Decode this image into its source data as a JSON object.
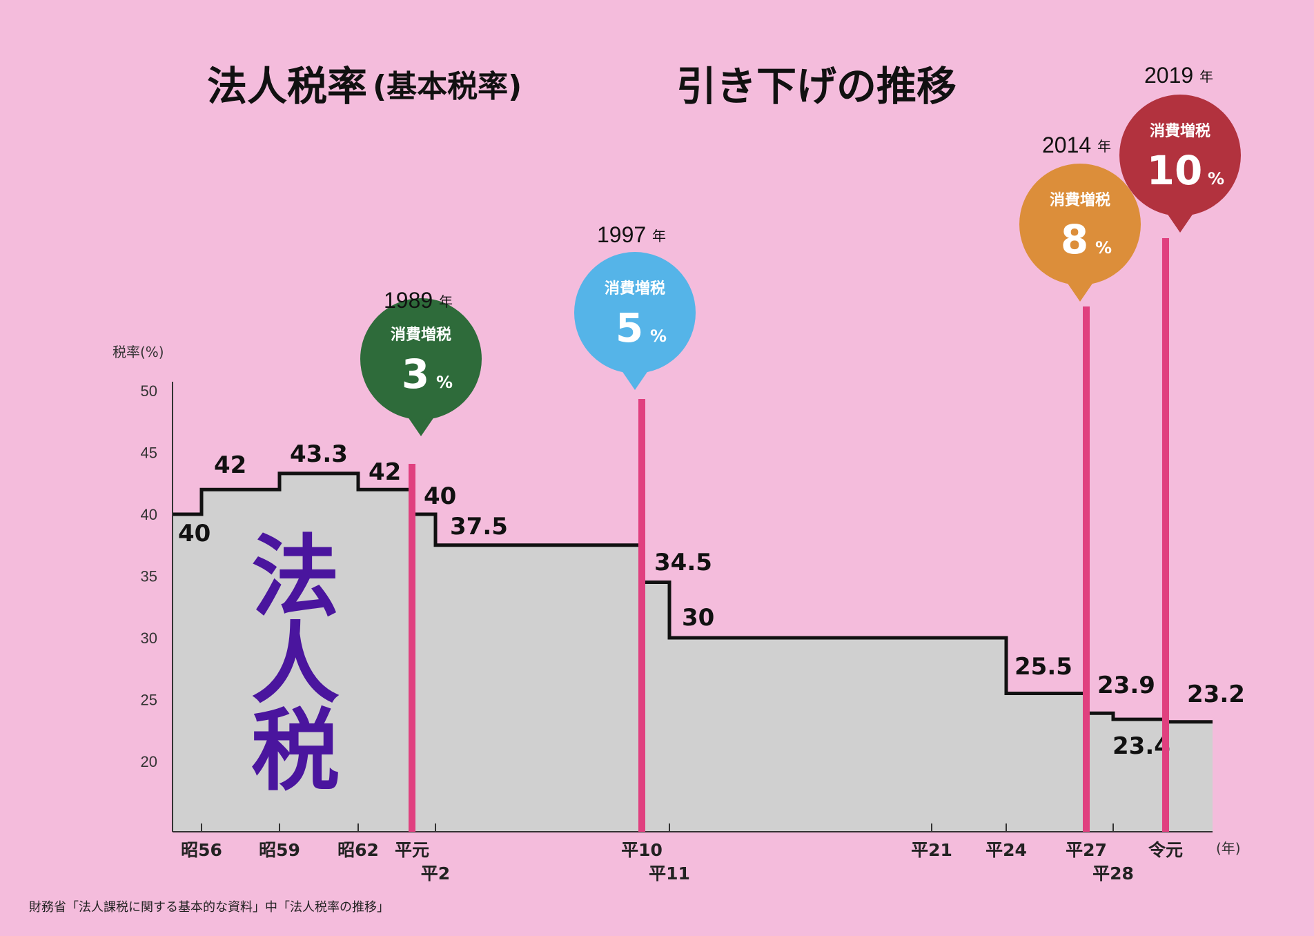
{
  "chart_data": {
    "type": "line",
    "step": true,
    "title_main": "法人税率",
    "title_paren": "(基本税率)",
    "title_tail": "引き下げの推移",
    "ylabel": "税率(%)",
    "xlabel": "(年)",
    "ylim": [
      15,
      50
    ],
    "yticks": [
      20,
      25,
      30,
      35,
      40,
      45,
      50
    ],
    "series_name": "法人税",
    "steps": [
      {
        "era": "昭56",
        "value": 40
      },
      {
        "era": "昭56",
        "value": 42
      },
      {
        "era": "昭59",
        "value": 43.3
      },
      {
        "era": "昭62",
        "value": 42
      },
      {
        "era": "平元",
        "value": 40
      },
      {
        "era": "平2",
        "value": 37.5
      },
      {
        "era": "平10",
        "value": 34.5
      },
      {
        "era": "平11",
        "value": 30
      },
      {
        "era": "平24",
        "value": 25.5
      },
      {
        "era": "平27",
        "value": 23.9
      },
      {
        "era": "平28",
        "value": 23.4
      },
      {
        "era": "令元",
        "value": 23.2
      }
    ],
    "x_ticks": [
      {
        "label": "昭56",
        "row": 1
      },
      {
        "label": "昭59",
        "row": 1
      },
      {
        "label": "昭62",
        "row": 1
      },
      {
        "label": "平元",
        "row": 1
      },
      {
        "label": "平2",
        "row": 2
      },
      {
        "label": "平10",
        "row": 1
      },
      {
        "label": "平11",
        "row": 2
      },
      {
        "label": "平21",
        "row": 1
      },
      {
        "label": "平24",
        "row": 1
      },
      {
        "label": "平27",
        "row": 1
      },
      {
        "label": "平28",
        "row": 2
      },
      {
        "label": "令元",
        "row": 1
      }
    ],
    "value_labels": [
      "40",
      "42",
      "43.3",
      "42",
      "40",
      "37.5",
      "34.5",
      "30",
      "25.5",
      "23.9",
      "23.4",
      "23.2"
    ],
    "annotations": [
      {
        "year": "1989",
        "year_suffix": "年",
        "label": "消費増税",
        "percent": "3",
        "unit": "%",
        "color": "#2e6b3a",
        "era": "平元"
      },
      {
        "year": "1997",
        "year_suffix": "年",
        "label": "消費増税",
        "percent": "5",
        "unit": "%",
        "color": "#55b4e8",
        "era": "平10"
      },
      {
        "year": "2014",
        "year_suffix": "年",
        "label": "消費増税",
        "percent": "8",
        "unit": "%",
        "color": "#dc8e3a",
        "era": "平27"
      },
      {
        "year": "2019",
        "year_suffix": "年",
        "label": "消費増税",
        "percent": "10",
        "unit": "%",
        "color": "#b2323e",
        "era": "令元"
      }
    ],
    "grid": false,
    "colors": {
      "background": "#f4bcdc",
      "area": "#d0d0d0",
      "step_line": "#111111",
      "marker_line": "#e0407f",
      "tax_text": "#4a159e"
    }
  },
  "source_note": "財務省「法人課税に関する基本的な資料」中「法人税率の推移」"
}
